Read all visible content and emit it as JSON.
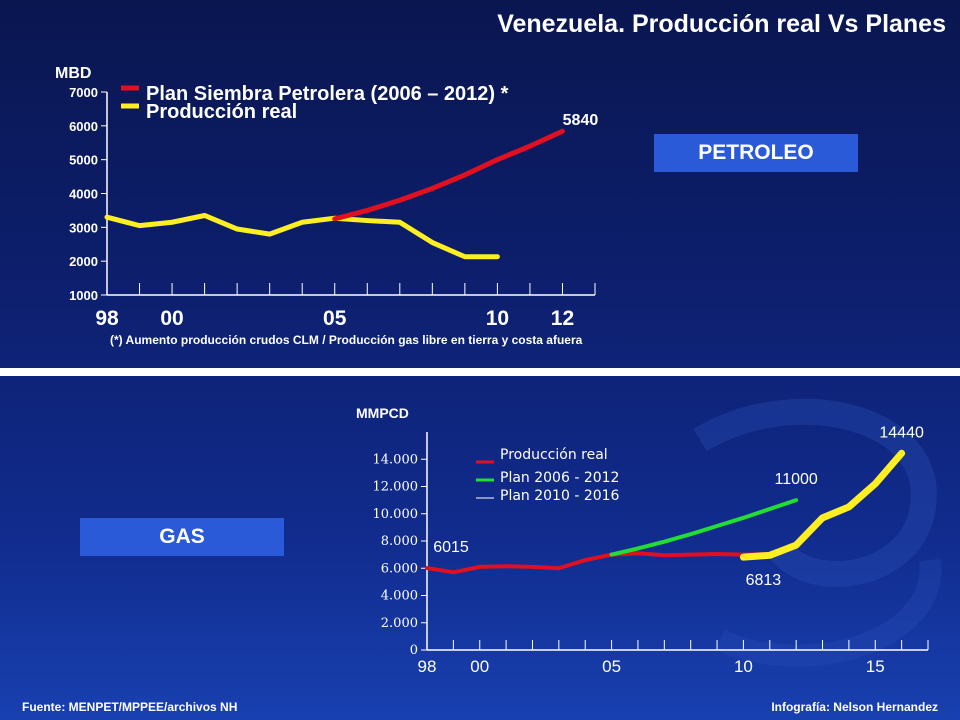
{
  "title": "Venezuela. Producción real Vs Planes",
  "sections": {
    "oil_label": "PETROLEO",
    "gas_label": "GAS"
  },
  "footnote": "(*) Aumento producción crudos CLM / Producción gas libre en tierra y costa afuera",
  "source": "Fuente: MENPET/MPPEE/archivos NH",
  "credit": "Infografía: Nelson Hernandez",
  "colors": {
    "plan_red": "#e01020",
    "real_yellow": "#ffee22",
    "plan_green": "#22dd33",
    "accent_box": "#2a5ad8"
  },
  "chart_data": [
    {
      "type": "line",
      "name": "oil",
      "ylabel": "MBD",
      "ylim": [
        1000,
        7000
      ],
      "yticks": [
        "7000",
        "6000",
        "5000",
        "4000",
        "3000",
        "2000",
        "1000"
      ],
      "xlim": [
        1998,
        2013
      ],
      "xticks": [
        {
          "x": 1998,
          "label": "98"
        },
        {
          "x": 2000,
          "label": "00"
        },
        {
          "x": 2005,
          "label": "05"
        },
        {
          "x": 2010,
          "label": "10"
        },
        {
          "x": 2012,
          "label": "12"
        }
      ],
      "minor_xticks": [
        1999,
        2001,
        2002,
        2003,
        2004,
        2006,
        2007,
        2008,
        2009,
        2011,
        2013
      ],
      "series": [
        {
          "name": "Plan Siembra Petrolera (2006 – 2012) *",
          "color": "#e01020",
          "x": [
            2005,
            2006,
            2007,
            2008,
            2009,
            2010,
            2011,
            2012
          ],
          "values": [
            3250,
            3500,
            3800,
            4150,
            4550,
            5000,
            5400,
            5840
          ]
        },
        {
          "name": "Producción real",
          "color": "#ffee22",
          "x": [
            1998,
            1999,
            2000,
            2001,
            2002,
            2003,
            2004,
            2005,
            2006,
            2007,
            2008,
            2009,
            2010
          ],
          "values": [
            3300,
            3050,
            3150,
            3350,
            2950,
            2800,
            3150,
            3270,
            3200,
            3150,
            2550,
            2130,
            2130
          ]
        }
      ],
      "annotations": [
        {
          "x": 2012,
          "y": 5840,
          "text": "5840"
        }
      ]
    },
    {
      "type": "line",
      "name": "gas",
      "ylabel": "MMPCD",
      "ylim": [
        0,
        16000
      ],
      "yticks": [
        "14.000",
        "12.000",
        "10.000",
        "8.000",
        "6.000",
        "4.000",
        "2.000",
        "0"
      ],
      "ytick_values": [
        14000,
        12000,
        10000,
        8000,
        6000,
        4000,
        2000,
        0
      ],
      "xlim": [
        1998,
        2017
      ],
      "xticks": [
        {
          "x": 1998,
          "label": "98"
        },
        {
          "x": 2000,
          "label": "00"
        },
        {
          "x": 2005,
          "label": "05"
        },
        {
          "x": 2010,
          "label": "10"
        },
        {
          "x": 2015,
          "label": "15"
        }
      ],
      "minor_xticks": [
        1999,
        2001,
        2002,
        2003,
        2004,
        2006,
        2007,
        2008,
        2009,
        2011,
        2012,
        2013,
        2014,
        2016,
        2017
      ],
      "series": [
        {
          "name": "Producción real",
          "color": "#e01020",
          "x": [
            1998,
            1999,
            2000,
            2001,
            2002,
            2003,
            2004,
            2005,
            2006,
            2007,
            2008,
            2009,
            2010,
            2011
          ],
          "values": [
            6015,
            5700,
            6100,
            6150,
            6100,
            6000,
            6600,
            7000,
            7100,
            6950,
            7000,
            7050,
            7000,
            7050
          ]
        },
        {
          "name": "Plan 2006 - 2012",
          "color": "#22dd33",
          "x": [
            2005,
            2006,
            2007,
            2008,
            2009,
            2010,
            2011,
            2012
          ],
          "values": [
            7000,
            7450,
            7950,
            8500,
            9100,
            9700,
            10350,
            11000
          ]
        },
        {
          "name": "Plan 2010 - 2016",
          "color": "#ffee22",
          "x": [
            2010,
            2011,
            2012,
            2013,
            2014,
            2015,
            2016
          ],
          "values": [
            6813,
            6950,
            7700,
            9700,
            10500,
            12200,
            14440
          ]
        }
      ],
      "annotations": [
        {
          "x": 1998,
          "y": 6015,
          "text": "6015"
        },
        {
          "x": 2012,
          "y": 11000,
          "text": "11000"
        },
        {
          "x": 2010,
          "y": 6813,
          "text": "6813"
        },
        {
          "x": 2016,
          "y": 14440,
          "text": "14440"
        }
      ]
    }
  ]
}
